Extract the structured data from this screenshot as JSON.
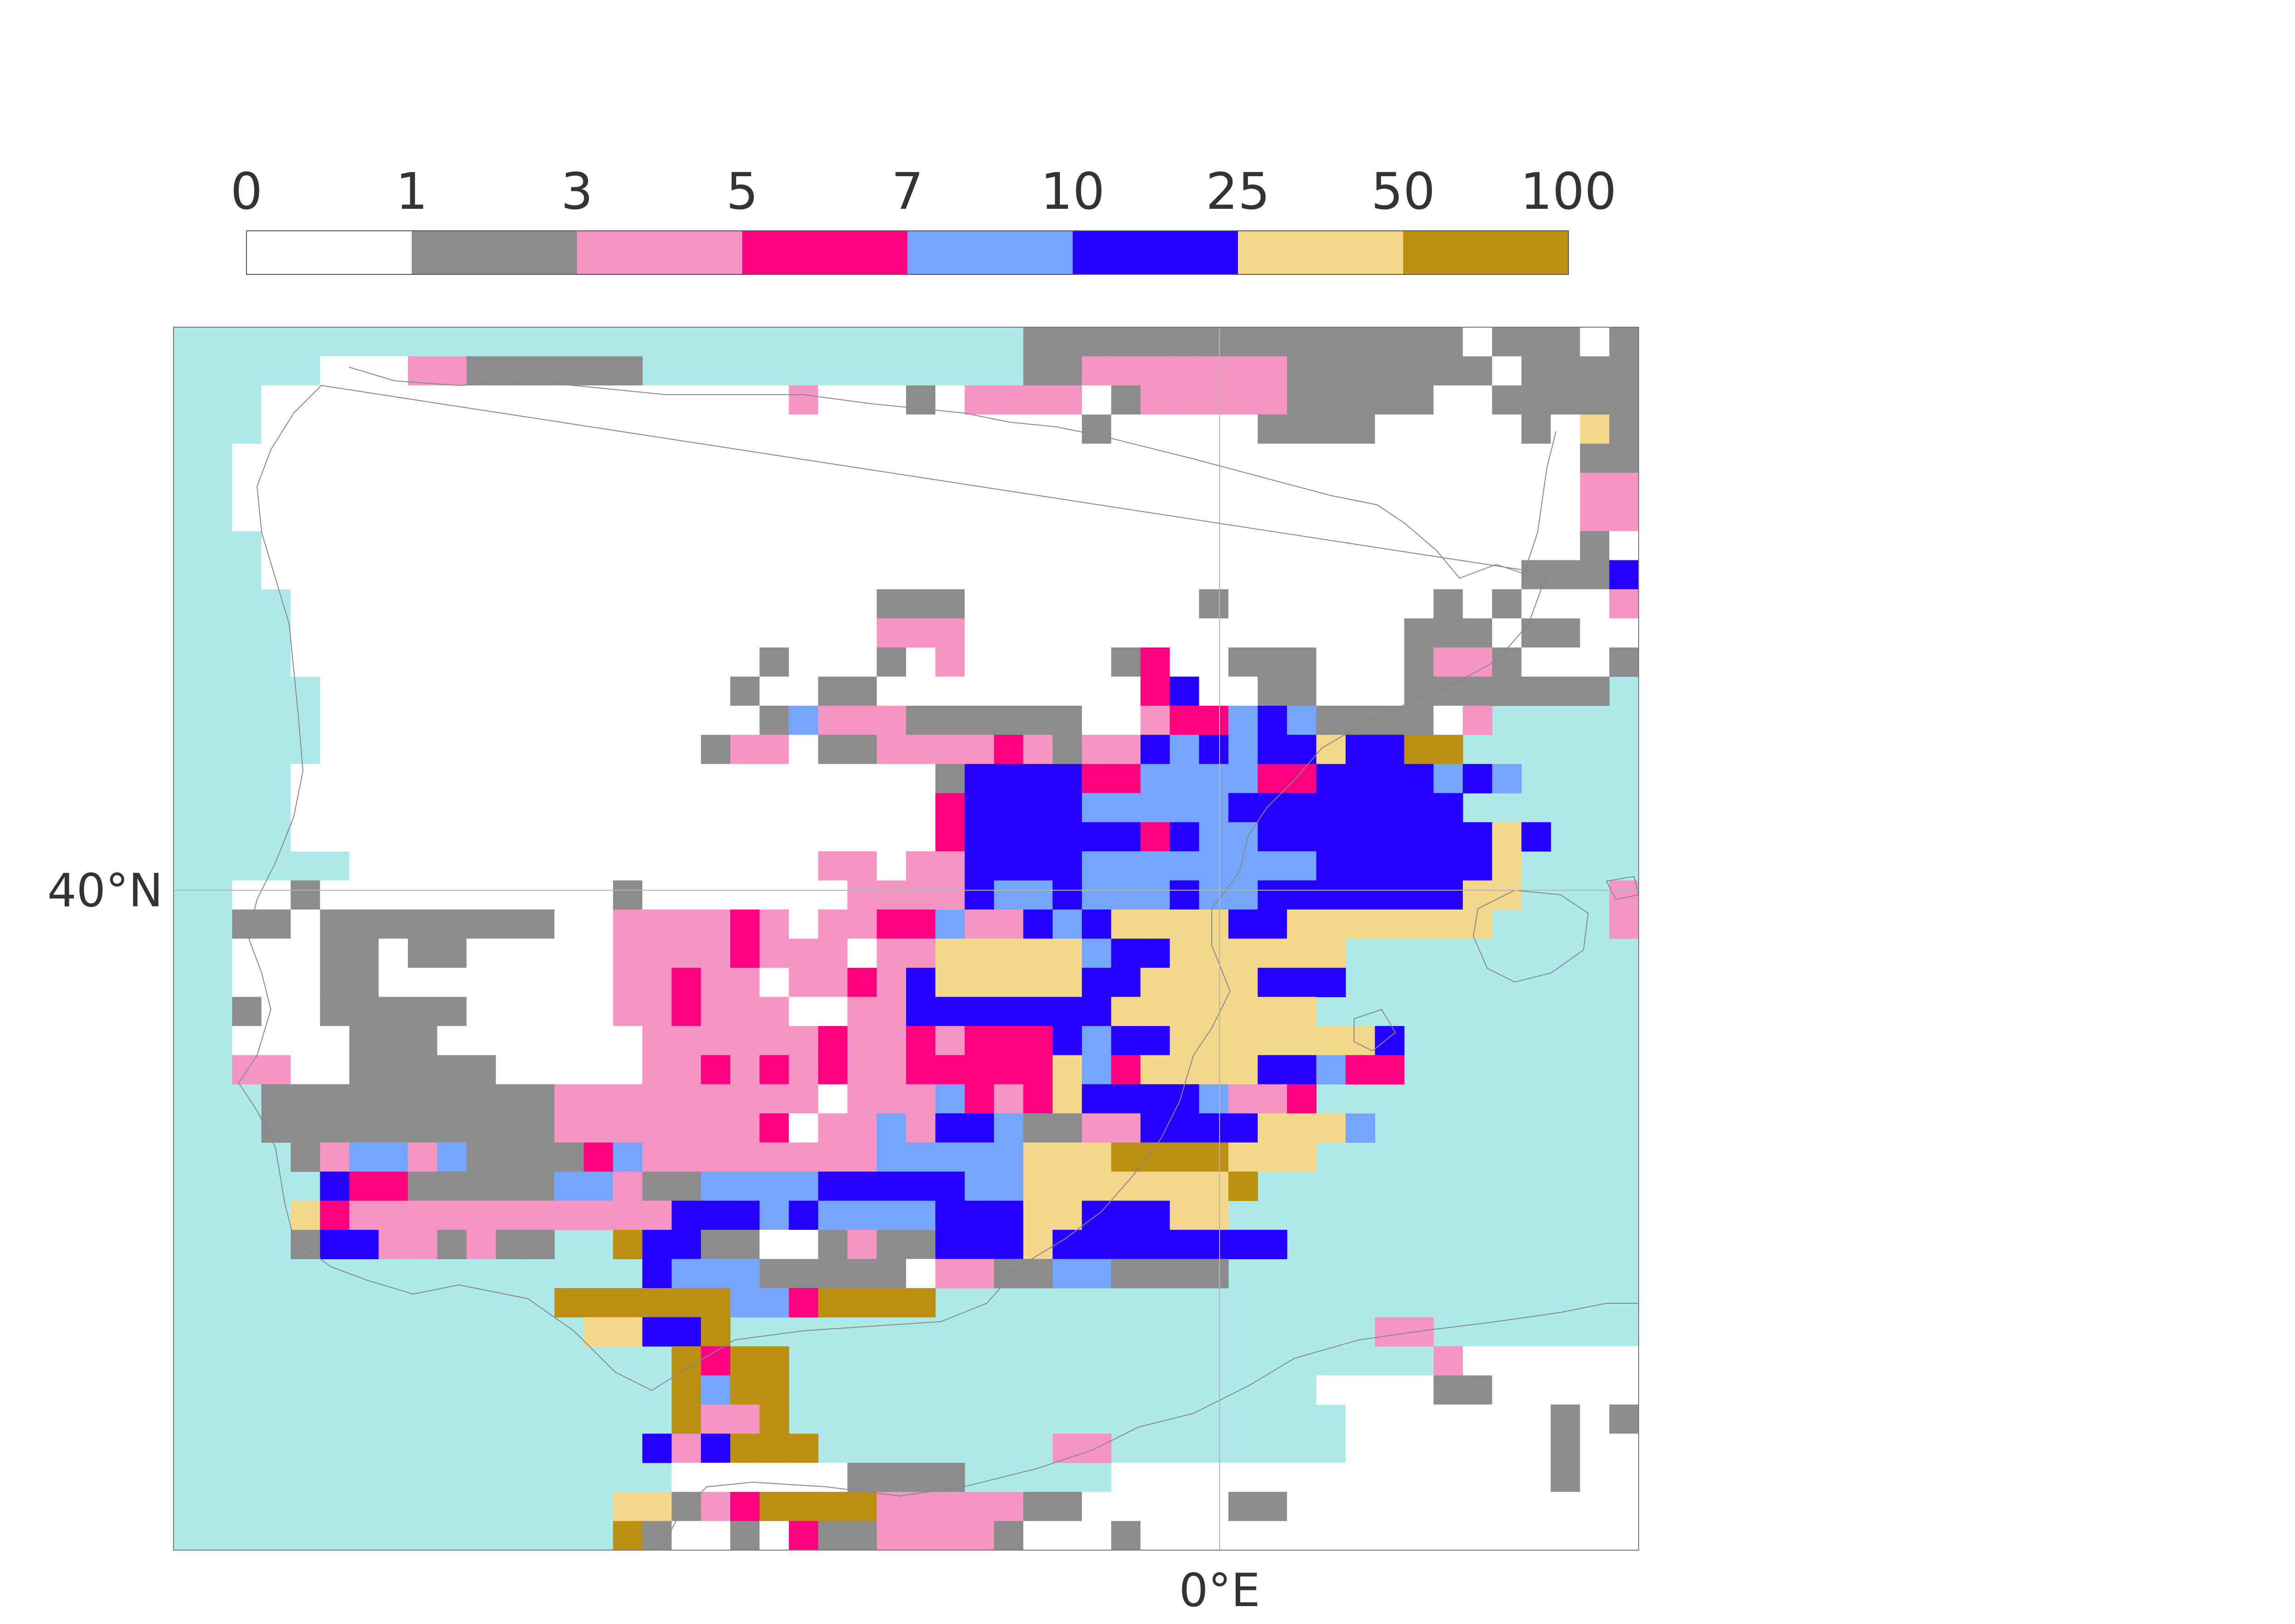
{
  "legend": {
    "tick_labels": [
      "0",
      "1",
      "3",
      "5",
      "7",
      "10",
      "25",
      "50",
      "100"
    ],
    "colors": [
      "#ffffff",
      "#8c8c8c",
      "#f595c4",
      "#ff0080",
      "#76a5fe",
      "#2400fe",
      "#f5d78c",
      "#bb8f12"
    ]
  },
  "map": {
    "lat_label": "40°N",
    "lon_label": "0°E",
    "sea_color": "#aeeaea",
    "coast_color": "#888888",
    "grid_line_color": "#b4b4b4"
  },
  "chart_data": {
    "type": "heatmap",
    "title": "",
    "bins": [
      0,
      1,
      3,
      5,
      7,
      10,
      25,
      50,
      100
    ],
    "legend_placement": "top",
    "grid": true,
    "grid_columns": 50,
    "grid_rows": 42,
    "axis_labels": {
      "latitude": "40°N",
      "longitude": "0°E"
    },
    "cell_classes_legend": "S = sea, 0 = below 1, 1 = 1–3, 2 = 3–5, 3 = 5–7, 4 = 7–10, 5 = 10–25, 6 = 25–50, 7 = 50–100",
    "cells": [
      "SSSSSSSSSSSSSSSSSSSSSSSSSSSSS11111111111111101110111",
      "SSSSS00022111111SSSSSSSSSSSSS1122222221111111011111",
      "SSS000000000000000000200010222201222221111100111111",
      "SSS000000000000000000000000000010000011110000010611",
      "SS000000000000000000000000000000000000000000000011S",
      "SS000000000000000000000000000000000000000000000022S",
      "SS0000000000000000000000000000000000000000000000221S",
      "SSS0000000000000000000000000000000000000000000001010S",
      "SSS00000000000000000000000000000000000000000001115S",
      "SSSS00000000000000000000111000000001000000010100022S",
      "SSSS00000000000000000000222000000000000000111011000S",
      "SSSS0000000000000000100010200000130011100012210001S",
      "SSSSS00000000000000100110000000003500110001111111SS",
      "SSSSS0000000000000001422211111100233454111102SSSSSS",
      "SSSSS000000000000012201122223212254545565577SSSSSS",
      "SSSS000000000000000000000015555334444335555454SSSSSSS",
      "SSSS0000000000000000000000355554444455555555SSSSSSSS",
      "SSSS0000000000000000000000355555535445555555565SSSSS",
      "SSSSSS0000000000000000220225555444444445555556SSSS222",
      "SS00100000000001000000022225445444544555555566SSS20012",
      "SS1101111111100222232022334225456666556666666SSSS2222SSSS",
      "SS00011011000002222322202266666455666666SSSSSS",
      "SS00011000000002232202232566666556666555SSSS",
      "SS1001111100000223222002255555556666666SSSS",
      "SS0000111000000022222232232333545566666665SSS",
      "SS2200111110000022323232233333643666655433SSSS",
      "SSS111111111122222222202224323655554223SSSS",
      "SSS11111111112222222302242554112255556664SSSS",
      "SSSS12442411113422222222444446667777666SSSS",
      "SSSSS53311111442114444555554466666667SSSSS",
      "SSSS63222222222225554544445556655566SSSSSSSSSSSSSSSS",
      "SSSS155221211SS75511001211555655555555SSSSSSSSSSSSSSS02",
      "SSSSSSSSSSSSSSSS54441111102211441111SSSSSSSSSSSSSSSSS222",
      "SSSSSSSSSSSSS7777774437777SSSSSSSSSSSSSSSSSSSSSSSS",
      "SSSSSSSSSSSSSS66557SSSSSSSSSSSSSSSSSSSSSS22SSSSSSS0001",
      "SSSSSSSSSSSSSSSSS7377SSSSSSSSSSSSSSSSSSSSSS2000000000010",
      "SSSSSSSSSSSSSSSSS7477SSSSSSSSSSSSSSSSSS000011000000001",
      "SSSSSSSSSSSSSSSSS7227SSSSSSSSSSSSSSSSSSS0000000101000001",
      "SSSSSSSSSSSSSSSS525777SSSSSSSS22SSSSSSSS0000000100000001",
      "SSSSSSSSSSSSSSSSS0000001111SSSSS0000000000000001000000",
      "SSSSSSSSSSSSSSS6612377772222211000001100000000000011100",
      "SSSSSSSSSSSSSSS71001031122221000100000000000000000001100"
    ]
  }
}
